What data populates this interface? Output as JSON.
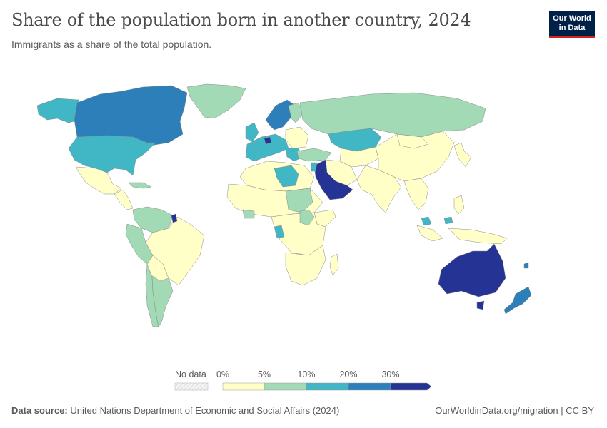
{
  "title": "Share of the population born in another country, 2024",
  "subtitle": "Immigrants as a share of the total population.",
  "logo": {
    "line1": "Our World",
    "line2": "in Data"
  },
  "legend": {
    "no_data_label": "No data",
    "tick_labels": [
      "0%",
      "5%",
      "10%",
      "20%",
      "30%"
    ],
    "bins": [
      {
        "range": "0-5%",
        "color": "#ffffc7"
      },
      {
        "range": "5-10%",
        "color": "#a1dab4"
      },
      {
        "range": "10-20%",
        "color": "#41b6c4"
      },
      {
        "range": "20-30%",
        "color": "#2c7fb8"
      },
      {
        "range": ">30%",
        "color": "#253494"
      }
    ],
    "no_data_color": "#eeeeee"
  },
  "footer": {
    "source_label": "Data source:",
    "source_text": "United Nations Department of Economic and Social Affairs (2024)",
    "right_text": "OurWorldinData.org/migration | CC BY"
  }
}
